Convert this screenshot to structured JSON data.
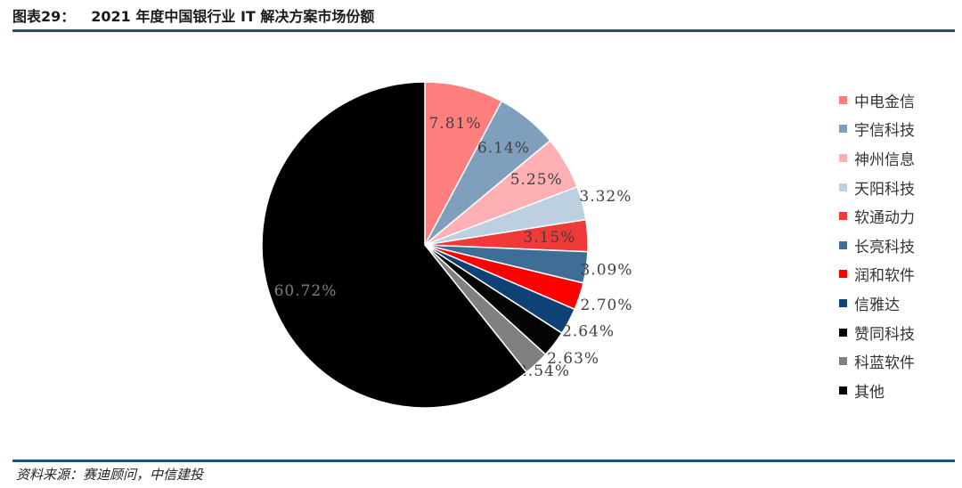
{
  "figure": {
    "number_label": "图表29：",
    "title": "2021 年度中国银行业 IT 解决方案市场份额",
    "source": "资料来源：赛迪顾问，中信建投"
  },
  "chart_data": {
    "type": "pie",
    "title": "2021 年度中国银行业 IT 解决方案市场份额",
    "legend_position": "right",
    "start_angle": "12 o'clock",
    "direction": "clockwise",
    "slices": [
      {
        "label": "中电金信",
        "value": 7.81,
        "display": "7.81%",
        "color": "#ff7f7f",
        "label_color": "#404040"
      },
      {
        "label": "宇信科技",
        "value": 6.14,
        "display": "6.14%",
        "color": "#7f9fbd",
        "label_color": "#404040"
      },
      {
        "label": "神州信息",
        "value": 5.25,
        "display": "5.25%",
        "color": "#ffb0b5",
        "label_color": "#404040"
      },
      {
        "label": "天阳科技",
        "value": 3.32,
        "display": "3.32%",
        "color": "#bdd0e0",
        "label_color": "#404040"
      },
      {
        "label": "软通动力",
        "value": 3.15,
        "display": "3.15%",
        "color": "#f03a3a",
        "label_color": "#404040"
      },
      {
        "label": "长亮科技",
        "value": 3.09,
        "display": "3.09%",
        "color": "#3e6d96",
        "label_color": "#404040"
      },
      {
        "label": "润和软件",
        "value": 2.7,
        "display": "2.70%",
        "color": "#ff0000",
        "label_color": "#404040"
      },
      {
        "label": "信雅达",
        "value": 2.64,
        "display": "2.64%",
        "color": "#0e4275",
        "label_color": "#404040"
      },
      {
        "label": "赞同科技",
        "value": 2.63,
        "display": "2.63%",
        "color": "#050505",
        "label_color": "#404040"
      },
      {
        "label": "科蓝软件",
        "value": 2.54,
        "display": "2.54%",
        "color": "#808080",
        "label_color": "#404040"
      },
      {
        "label": "其他",
        "value": 60.72,
        "display": "60.72%",
        "color": "#000000",
        "label_color": "#7f7f7f"
      }
    ]
  }
}
